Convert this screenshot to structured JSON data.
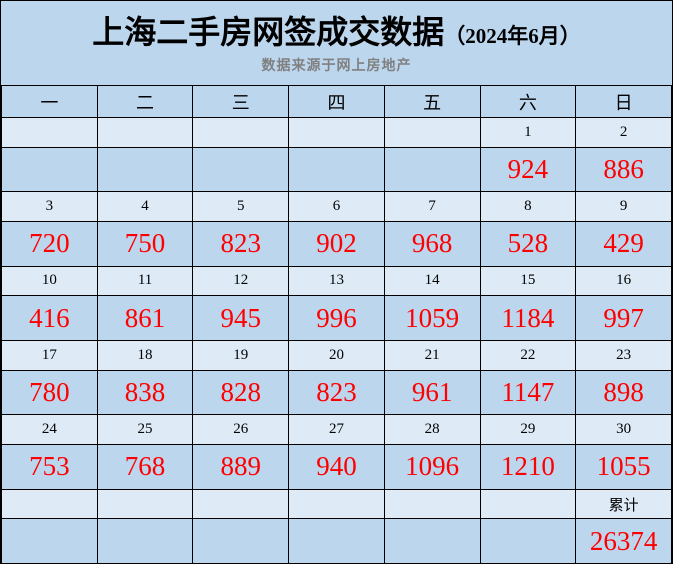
{
  "title": {
    "main": "上海二手房网签成交数据",
    "date_suffix": "（2024年6月）",
    "subtitle": "数据来源于网上房地产"
  },
  "weekdays": [
    "一",
    "二",
    "三",
    "四",
    "五",
    "六",
    "日"
  ],
  "calendar": {
    "weeks": [
      {
        "dates": [
          "",
          "",
          "",
          "",
          "",
          "1",
          "2"
        ],
        "values": [
          "",
          "",
          "",
          "",
          "",
          "924",
          "886"
        ]
      },
      {
        "dates": [
          "3",
          "4",
          "5",
          "6",
          "7",
          "8",
          "9"
        ],
        "values": [
          "720",
          "750",
          "823",
          "902",
          "968",
          "528",
          "429"
        ]
      },
      {
        "dates": [
          "10",
          "11",
          "12",
          "13",
          "14",
          "15",
          "16"
        ],
        "values": [
          "416",
          "861",
          "945",
          "996",
          "1059",
          "1184",
          "997"
        ]
      },
      {
        "dates": [
          "17",
          "18",
          "19",
          "20",
          "21",
          "22",
          "23"
        ],
        "values": [
          "780",
          "838",
          "828",
          "823",
          "961",
          "1147",
          "898"
        ]
      },
      {
        "dates": [
          "24",
          "25",
          "26",
          "27",
          "28",
          "29",
          "30"
        ],
        "values": [
          "753",
          "768",
          "889",
          "940",
          "1096",
          "1210",
          "1055"
        ]
      }
    ],
    "summary_label": "累计",
    "summary_value": "26374"
  },
  "colors": {
    "background_blue": "#BCD6EE",
    "row_light_blue": "#DEEBF7",
    "value_red": "#FF0000",
    "border_black": "#000000",
    "subtitle_gray": "#808080"
  },
  "chart_data": {
    "type": "table",
    "title": "上海二手房网签成交数据（2024年6月）",
    "subtitle": "数据来源于网上房地产",
    "columns": [
      "一",
      "二",
      "三",
      "四",
      "五",
      "六",
      "日"
    ],
    "dates": [
      1,
      2,
      3,
      4,
      5,
      6,
      7,
      8,
      9,
      10,
      11,
      12,
      13,
      14,
      15,
      16,
      17,
      18,
      19,
      20,
      21,
      22,
      23,
      24,
      25,
      26,
      27,
      28,
      29,
      30
    ],
    "values": [
      924,
      886,
      720,
      750,
      823,
      902,
      968,
      528,
      429,
      416,
      861,
      945,
      996,
      1059,
      1184,
      997,
      780,
      838,
      828,
      823,
      961,
      1147,
      898,
      753,
      768,
      889,
      940,
      1096,
      1210,
      1055
    ],
    "cumulative_label": "累计",
    "cumulative_total": 26374
  }
}
